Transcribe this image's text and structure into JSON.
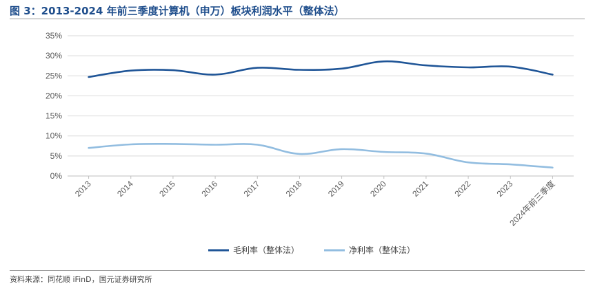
{
  "header": {
    "title": "图 3：2013-2024 年前三季度计算机（申万）板块利润水平（整体法）"
  },
  "footer": {
    "source": "资料来源：同花顺 iFinD，国元证券研究所"
  },
  "chart_data": {
    "type": "line",
    "title": "图 3：2013-2024 年前三季度计算机（申万）板块利润水平（整体法）",
    "categories": [
      "2013",
      "2014",
      "2015",
      "2016",
      "2017",
      "2018",
      "2019",
      "2020",
      "2021",
      "2022",
      "2023",
      "2024年前三季度"
    ],
    "series": [
      {
        "name": "毛利率（整体法）",
        "color": "#1f5597",
        "values": [
          24.7,
          26.3,
          26.4,
          25.3,
          27.0,
          26.5,
          26.8,
          28.6,
          27.6,
          27.1,
          27.3,
          25.3
        ]
      },
      {
        "name": "净利率（整体法）",
        "color": "#92bde0",
        "values": [
          7.0,
          7.9,
          8.0,
          7.8,
          7.8,
          5.5,
          6.7,
          6.0,
          5.6,
          3.4,
          2.9,
          2.1
        ]
      }
    ],
    "yticks": [
      "0%",
      "5%",
      "10%",
      "15%",
      "20%",
      "25%",
      "30%",
      "35%"
    ],
    "ylim": [
      0,
      35
    ],
    "grid": true,
    "legend": "bottom"
  }
}
